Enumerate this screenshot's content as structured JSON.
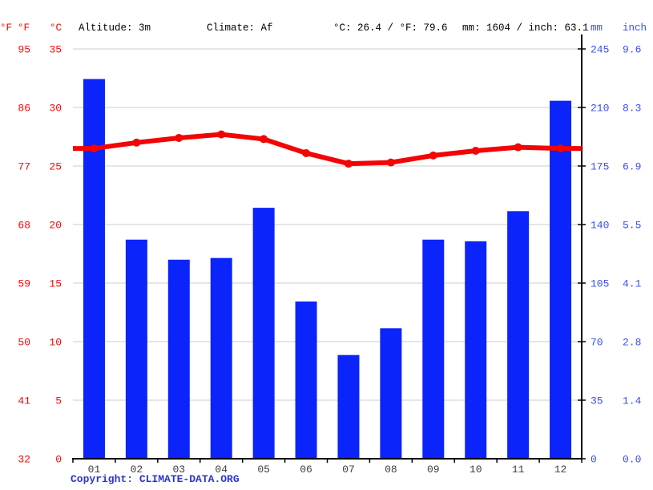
{
  "header": {
    "f_symbol": "°F",
    "c_symbol": "°C",
    "altitude": "Altitude: 3m",
    "climate": "Climate: Af",
    "temp_summary": "°C: 26.4 / °F: 79.6",
    "precip_summary": "mm: 1604 / inch: 63.1",
    "mm_symbol": "mm",
    "inch_symbol": "inch"
  },
  "footer": {
    "copyright_label": "Copyright: ",
    "copyright_link": "CLIMATE-DATA.ORG"
  },
  "colors": {
    "bar_blue": "#0b24fb",
    "line_red": "#f20505",
    "red_text": "#fb0505",
    "blue_text": "#3a4df0",
    "copyright_blue": "#2a35d6",
    "grid_gray": "#cccccc",
    "axis_black": "#000000",
    "month_text": "#3f3f3f"
  },
  "chart_data": {
    "type": "bar",
    "title": "",
    "categories": [
      "01",
      "02",
      "03",
      "04",
      "05",
      "06",
      "07",
      "08",
      "09",
      "10",
      "11",
      "12"
    ],
    "series": [
      {
        "name": "precipitation-mm",
        "type": "bar",
        "values": [
          227,
          131,
          119,
          120,
          150,
          94,
          62,
          78,
          131,
          130,
          148,
          214
        ]
      },
      {
        "name": "temperature-c",
        "type": "line",
        "values": [
          26.5,
          27.0,
          27.4,
          27.7,
          27.3,
          26.1,
          25.2,
          25.3,
          25.9,
          26.3,
          26.6,
          26.5
        ]
      }
    ],
    "left_axis": {
      "f_ticks": [
        "32",
        "41",
        "50",
        "59",
        "68",
        "77",
        "86",
        "95"
      ],
      "c_ticks": [
        "0",
        "5",
        "10",
        "15",
        "20",
        "25",
        "30",
        "35"
      ]
    },
    "right_axis": {
      "mm_ticks": [
        "0",
        "35",
        "70",
        "105",
        "140",
        "175",
        "210",
        "245"
      ],
      "inch_ticks": [
        "0.0",
        "1.4",
        "2.8",
        "4.1",
        "5.5",
        "6.9",
        "8.3",
        "9.6"
      ]
    },
    "ylim_c": [
      0,
      35
    ],
    "ylim_mm": [
      0,
      245
    ],
    "grid": true,
    "legend_position": "none"
  }
}
